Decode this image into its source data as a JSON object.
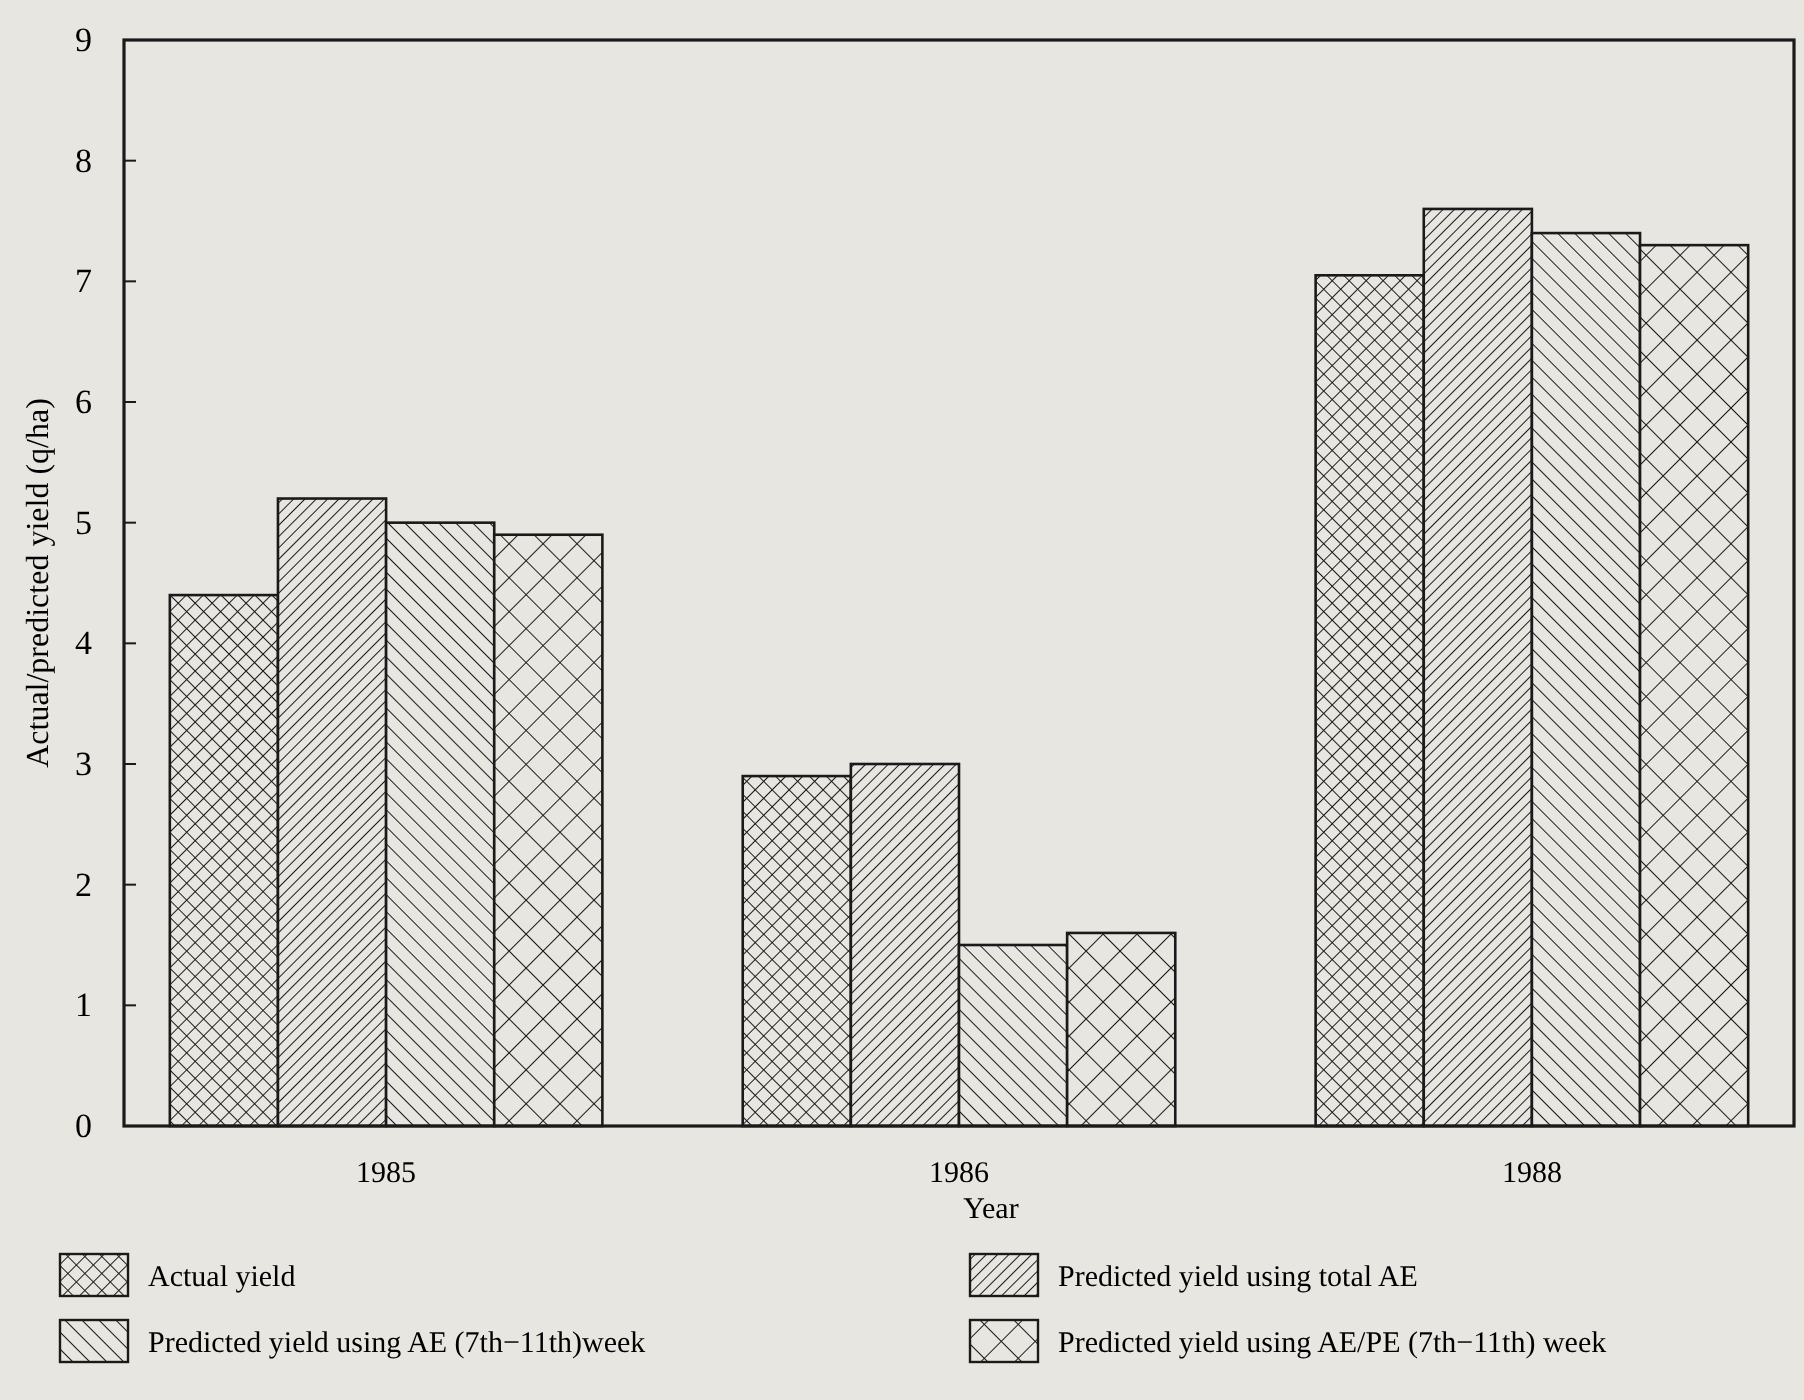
{
  "chart_data": {
    "type": "bar",
    "xlabel": "Year",
    "ylabel": "Actual/predicted yield (q/ha)",
    "categories": [
      "1985",
      "1986",
      "1988"
    ],
    "series": [
      {
        "name": "Actual yield",
        "color": "#1a1a1a",
        "values": [
          4.4,
          2.9,
          7.05
        ]
      },
      {
        "name": "Predicted yield using total AE",
        "color": "#1a1a1a",
        "values": [
          5.2,
          3.0,
          7.6
        ]
      },
      {
        "name": "Predicted yield using AE (7th−11th)week",
        "color": "#1a1a1a",
        "values": [
          5.0,
          1.5,
          7.4
        ]
      },
      {
        "name": "Predicted yield using AE/PE (7th−11th) week",
        "color": "#1a1a1a",
        "values": [
          4.9,
          1.6,
          7.3
        ]
      }
    ],
    "ylim": [
      0,
      9
    ],
    "yticks": [
      0,
      1,
      2,
      3,
      4,
      5,
      6,
      7,
      8,
      9
    ],
    "grid": false,
    "legend": "bottom"
  }
}
